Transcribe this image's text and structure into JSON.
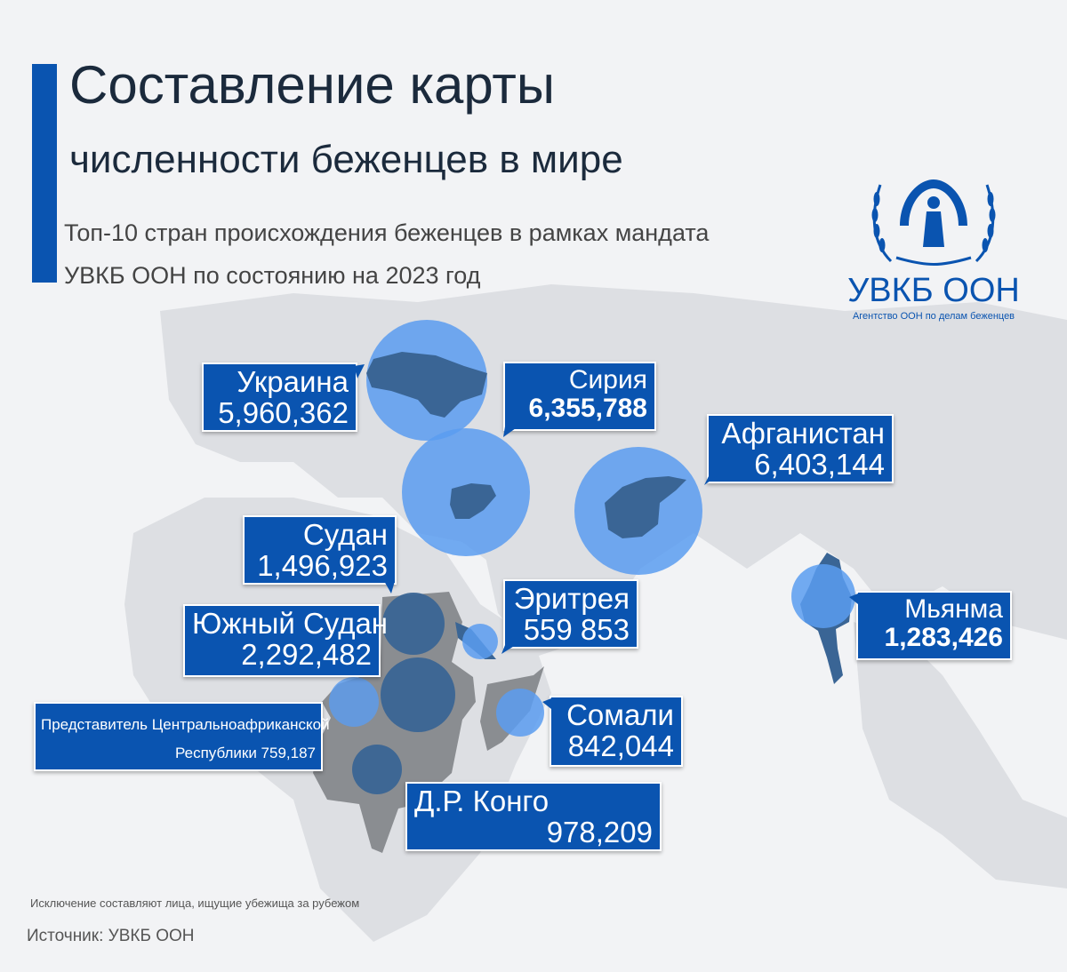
{
  "header": {
    "title_line1": "Составление карты",
    "title_line2": "численности беженцев в мире",
    "subtitle_line1": "Топ-10 стран происхождения беженцев в рамках мандата",
    "subtitle_line2": "УВКБ ООН по состоянию на 2023 год"
  },
  "logo": {
    "name": "УВКБ ООН",
    "tagline": "Агентство ООН по делам беженцев",
    "icon": "unhcr-sheltering-hands-icon"
  },
  "colors": {
    "accent": "#0a54b0",
    "bubble": "#5a9cf0",
    "highlighted_country": "#3a6595",
    "africa_region": "#8a8d91",
    "land": "#dcdee2",
    "background": "#f2f3f5"
  },
  "countries": [
    {
      "name": "Украина",
      "value": "5,960,362"
    },
    {
      "name": "Сирия",
      "value": "6,355,788"
    },
    {
      "name": "Афганистан",
      "value": "6,403,144"
    },
    {
      "name": "Судан",
      "value": "1,496,923"
    },
    {
      "name": "Эритрея",
      "value": "559 853"
    },
    {
      "name": "Мьянма",
      "value": "1,283,426"
    },
    {
      "name": "Южный Судан",
      "value": "2,292,482"
    },
    {
      "name": "Сомали",
      "value": "842,044"
    },
    {
      "name": "Представитель Центральноафриканской",
      "value": "Республики 759,187"
    },
    {
      "name": "Д.Р. Конго",
      "value": "978,209"
    }
  ],
  "footer": {
    "note": "Исключение составляют лица, ищущие убежища за рубежом",
    "source": "Источник: УВКБ ООН"
  }
}
